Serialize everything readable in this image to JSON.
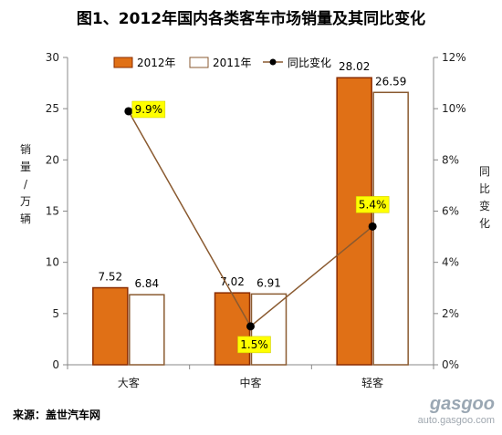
{
  "title": "图1、2012年国内各类客车市场销量及其同比变化",
  "source": "来源：盖世汽车网",
  "watermark": {
    "brand": "gasgoo",
    "sub": "auto.gasgoo.com"
  },
  "colors": {
    "bar2012": "#e07016",
    "bar2012_edge": "#8a2c00",
    "bar2011": "#ffffff",
    "bar2011_edge": "#8a5a30",
    "line": "#8a5a30",
    "highlight": "#ffff00"
  },
  "chart_data": {
    "type": "bar",
    "categories": [
      "大客",
      "中客",
      "轻客"
    ],
    "series": [
      {
        "name": "2012年",
        "values": [
          7.52,
          7.02,
          28.02
        ]
      },
      {
        "name": "2011年",
        "values": [
          6.84,
          6.91,
          26.59
        ]
      }
    ],
    "line_series": {
      "name": "同比变化",
      "values": [
        9.9,
        1.5,
        5.4
      ],
      "labels": [
        "9.9%",
        "1.5%",
        "5.4%"
      ]
    },
    "value_labels_2012": [
      "7.52",
      "7.02",
      "28.02"
    ],
    "value_labels_2011": [
      "6.84",
      "6.91",
      "26.59"
    ],
    "ylabel": "销量/万辆",
    "y2label": "同比变化",
    "ylim": [
      0,
      30
    ],
    "y2lim": [
      0,
      12
    ],
    "yticks": [
      "0",
      "5",
      "10",
      "15",
      "20",
      "25",
      "30"
    ],
    "y2ticks": [
      "0%",
      "2%",
      "4%",
      "6%",
      "8%",
      "10%",
      "12%"
    ],
    "legend_position": "top",
    "grid": false
  }
}
